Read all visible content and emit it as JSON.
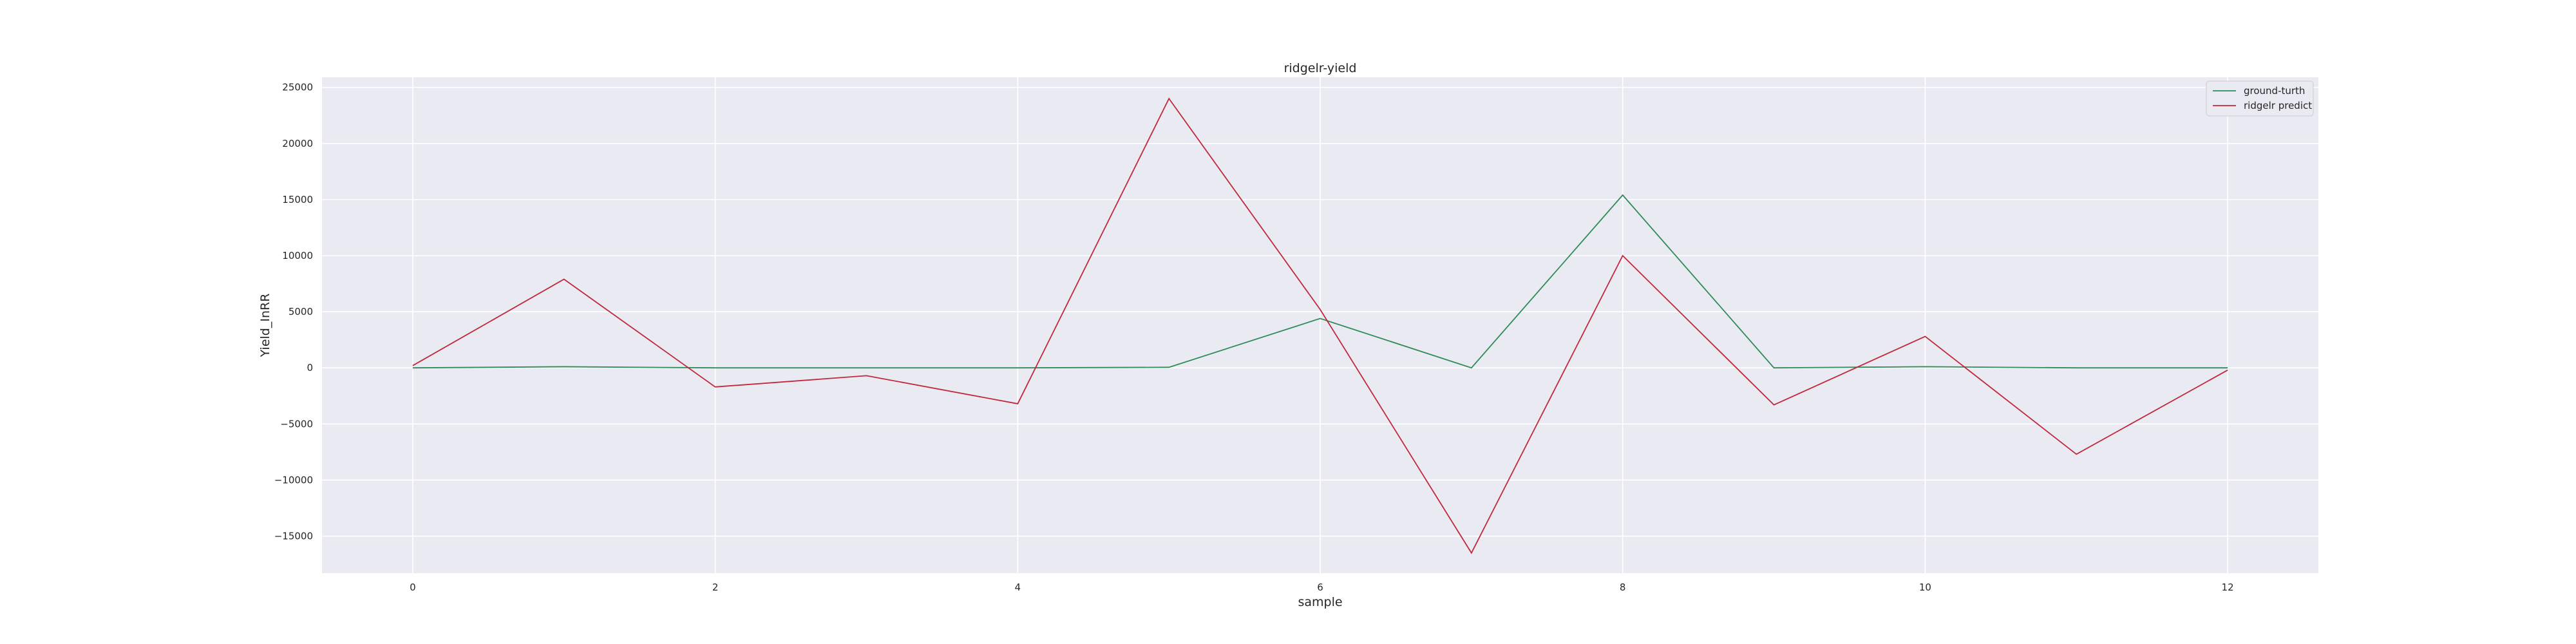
{
  "chart_data": {
    "type": "line",
    "title": "ridgelr-yield",
    "xlabel": "sample",
    "ylabel": "Yield_InRR",
    "x": [
      0,
      1,
      2,
      3,
      4,
      5,
      6,
      7,
      8,
      9,
      10,
      11,
      12
    ],
    "xticks": [
      0,
      2,
      4,
      6,
      8,
      10,
      12
    ],
    "xtick_labels": [
      "0",
      "2",
      "4",
      "6",
      "8",
      "10",
      "12"
    ],
    "yticks": [
      -15000,
      -10000,
      -5000,
      0,
      5000,
      10000,
      15000,
      20000,
      25000
    ],
    "ytick_labels": [
      "−15000",
      "−10000",
      "−5000",
      "0",
      "5000",
      "10000",
      "15000",
      "20000",
      "25000"
    ],
    "xlim": [
      -0.6,
      12.6
    ],
    "ylim": [
      -18300,
      25900
    ],
    "grid": true,
    "legend_position": "top-right",
    "background": "#eaeaf2",
    "series": [
      {
        "name": "ground-turth",
        "color": "#2e8b57",
        "values": [
          0,
          100,
          0,
          0,
          0,
          50,
          4400,
          0,
          15400,
          0,
          100,
          0,
          0
        ]
      },
      {
        "name": "ridgelr predict",
        "color": "#c0283c",
        "values": [
          200,
          7900,
          -1700,
          -700,
          -3200,
          24000,
          5200,
          -16500,
          10000,
          -3300,
          2800,
          -7700,
          -200
        ]
      }
    ]
  }
}
